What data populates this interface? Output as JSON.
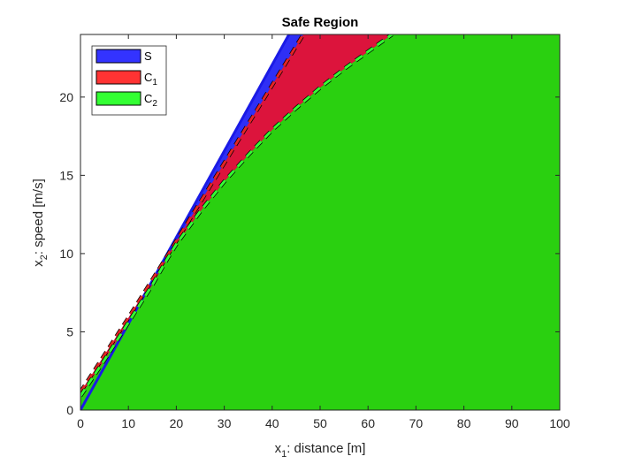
{
  "chart_data": {
    "type": "area",
    "title": "Safe Region",
    "xlabel": {
      "prefix": "x",
      "sub": "1",
      "suffix": ": distance [m]"
    },
    "ylabel": {
      "prefix": "x",
      "sub": "2",
      "suffix": ": speed [m/s]"
    },
    "xlim": [
      0,
      100
    ],
    "ylim": [
      0,
      24
    ],
    "xticks": [
      0,
      10,
      20,
      30,
      40,
      50,
      60,
      70,
      80,
      90,
      100
    ],
    "yticks": [
      0,
      5,
      10,
      15,
      20
    ],
    "legend_position": "top-left",
    "series": [
      {
        "name": "S",
        "label_main": "S",
        "label_sub": "",
        "color": "#3333ff",
        "fill": "#2f2ff5",
        "edge": "#1a1ae6",
        "edge_style": "solid",
        "boundary": [
          [
            0,
            0
          ],
          [
            43.5,
            24
          ]
        ]
      },
      {
        "name": "C1",
        "label_main": "C",
        "label_sub": "1",
        "color": "#ff3333",
        "fill": "#dc143c",
        "edge": "#e52424",
        "edge_style": "dashed",
        "boundary": [
          [
            0,
            1.15
          ],
          [
            10,
            5.9
          ],
          [
            18,
            9.8
          ],
          [
            20,
            10.8
          ],
          [
            46.5,
            24
          ]
        ]
      },
      {
        "name": "C2",
        "label_main": "C",
        "label_sub": "2",
        "color": "#33ff33",
        "fill": "#2ad010",
        "edge": "#33ff33",
        "edge_style": "dashed",
        "boundary": [
          [
            0,
            0.9
          ],
          [
            5,
            3.2
          ],
          [
            10,
            5.6
          ],
          [
            15,
            8.0
          ],
          [
            18,
            9.6
          ],
          [
            20,
            10.6
          ],
          [
            25,
            12.7
          ],
          [
            30,
            14.6
          ],
          [
            35,
            16.3
          ],
          [
            40,
            17.9
          ],
          [
            45,
            19.3
          ],
          [
            50,
            20.6
          ],
          [
            55,
            21.8
          ],
          [
            60,
            22.9
          ],
          [
            65,
            24
          ]
        ]
      }
    ]
  }
}
